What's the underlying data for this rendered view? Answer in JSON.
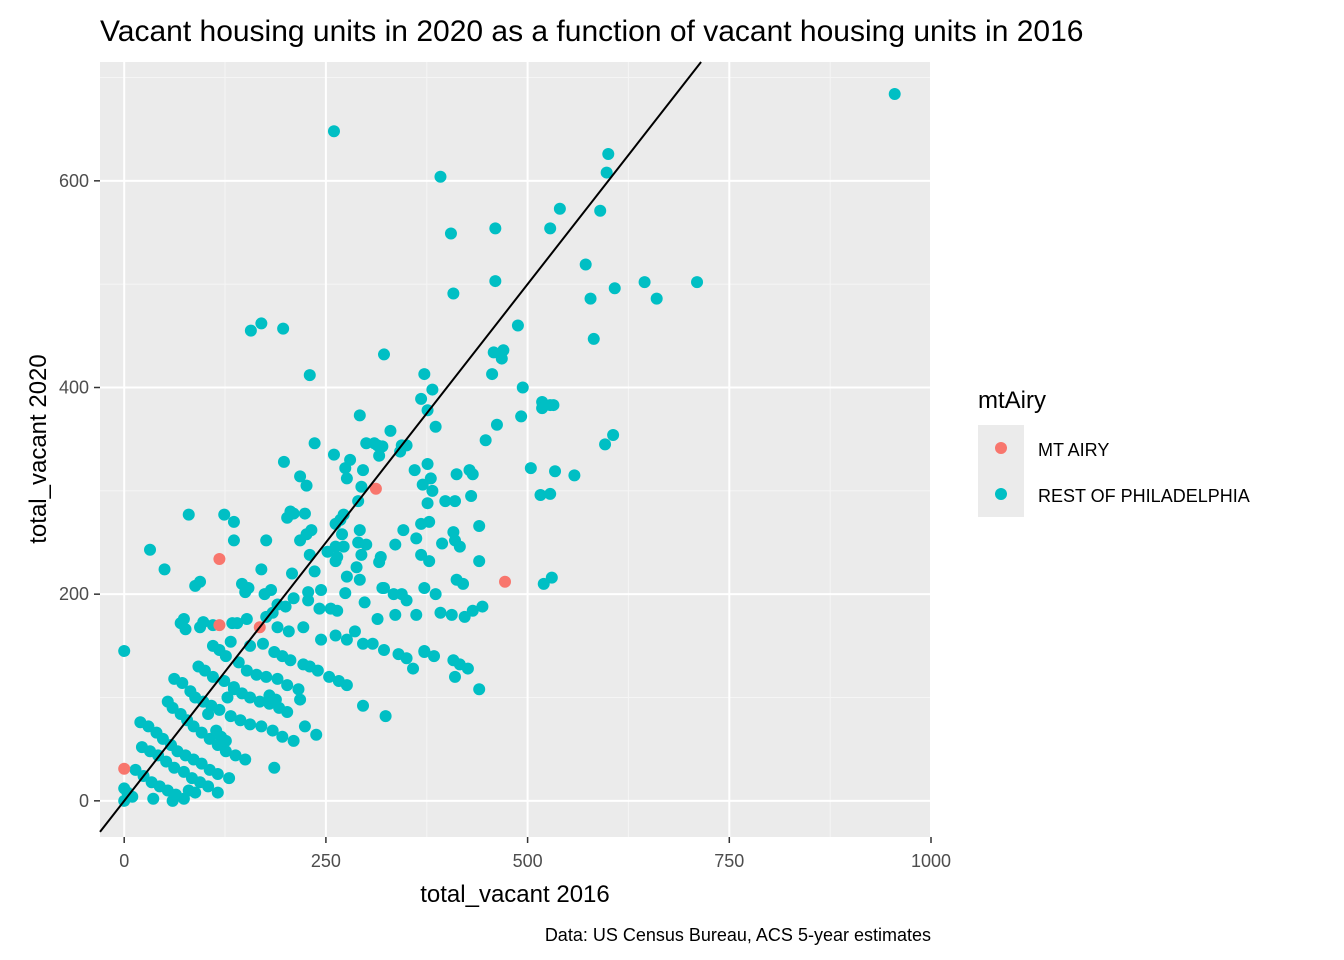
{
  "chart_data": {
    "type": "scatter",
    "title": "Vacant housing units in 2020 as a function of vacant housing units in 2016",
    "xlabel": "total_vacant 2016",
    "ylabel": "total_vacant 2020",
    "caption": "Data: US Census Bureau, ACS 5-year estimates",
    "xlim": [
      -30,
      1000
    ],
    "ylim": [
      -35,
      715
    ],
    "x_ticks": [
      0,
      250,
      500,
      750,
      1000
    ],
    "y_ticks": [
      0,
      200,
      400,
      600
    ],
    "grid": true,
    "legend": {
      "title": "mtAiry",
      "placement": "right"
    },
    "reference_line": {
      "slope": 1,
      "intercept": 0,
      "color": "#000000"
    },
    "series": [
      {
        "name": "MT AIRY",
        "color": "#F8766D",
        "points": [
          [
            0,
            31
          ],
          [
            118,
            234
          ],
          [
            118,
            170
          ],
          [
            168,
            168
          ],
          [
            312,
            302
          ],
          [
            472,
            212
          ]
        ]
      },
      {
        "name": "REST OF PHILADELPHIA",
        "color": "#00BFC4",
        "points": [
          [
            955,
            684
          ],
          [
            260,
            648
          ],
          [
            392,
            604
          ],
          [
            600,
            626
          ],
          [
            598,
            608
          ],
          [
            540,
            573
          ],
          [
            590,
            571
          ],
          [
            528,
            554
          ],
          [
            460,
            554
          ],
          [
            405,
            549
          ],
          [
            572,
            519
          ],
          [
            460,
            503
          ],
          [
            645,
            502
          ],
          [
            710,
            502
          ],
          [
            608,
            496
          ],
          [
            408,
            491
          ],
          [
            578,
            486
          ],
          [
            660,
            486
          ],
          [
            488,
            460
          ],
          [
            170,
            462
          ],
          [
            157,
            455
          ],
          [
            197,
            457
          ],
          [
            582,
            447
          ],
          [
            322,
            432
          ],
          [
            470,
            436
          ],
          [
            458,
            434
          ],
          [
            468,
            428
          ],
          [
            230,
            412
          ],
          [
            372,
            413
          ],
          [
            456,
            413
          ],
          [
            494,
            400
          ],
          [
            382,
            398
          ],
          [
            368,
            389
          ],
          [
            518,
            386
          ],
          [
            528,
            383
          ],
          [
            532,
            383
          ],
          [
            376,
            378
          ],
          [
            518,
            380
          ],
          [
            492,
            372
          ],
          [
            292,
            373
          ],
          [
            462,
            364
          ],
          [
            386,
            362
          ],
          [
            330,
            358
          ],
          [
            300,
            346
          ],
          [
            236,
            346
          ],
          [
            310,
            346
          ],
          [
            344,
            344
          ],
          [
            350,
            344
          ],
          [
            314,
            344
          ],
          [
            606,
            354
          ],
          [
            448,
            349
          ],
          [
            596,
            345
          ],
          [
            342,
            338
          ],
          [
            320,
            343
          ],
          [
            316,
            334
          ],
          [
            260,
            335
          ],
          [
            280,
            330
          ],
          [
            198,
            328
          ],
          [
            376,
            326
          ],
          [
            274,
            322
          ],
          [
            504,
            322
          ],
          [
            218,
            314
          ],
          [
            296,
            320
          ],
          [
            360,
            320
          ],
          [
            428,
            320
          ],
          [
            412,
            316
          ],
          [
            432,
            316
          ],
          [
            558,
            315
          ],
          [
            534,
            319
          ],
          [
            226,
            305
          ],
          [
            370,
            306
          ],
          [
            380,
            312
          ],
          [
            276,
            312
          ],
          [
            382,
            300
          ],
          [
            290,
            290
          ],
          [
            398,
            290
          ],
          [
            376,
            288
          ],
          [
            410,
            290
          ],
          [
            294,
            304
          ],
          [
            528,
            297
          ],
          [
            516,
            296
          ],
          [
            430,
            295
          ],
          [
            206,
            280
          ],
          [
            202,
            274
          ],
          [
            210,
            278
          ],
          [
            224,
            278
          ],
          [
            124,
            277
          ],
          [
            80,
            277
          ],
          [
            272,
            277
          ],
          [
            262,
            268
          ],
          [
            368,
            268
          ],
          [
            378,
            270
          ],
          [
            268,
            272
          ],
          [
            136,
            270
          ],
          [
            346,
            262
          ],
          [
            232,
            262
          ],
          [
            408,
            260
          ],
          [
            410,
            252
          ],
          [
            440,
            266
          ],
          [
            270,
            258
          ],
          [
            292,
            262
          ],
          [
            176,
            252
          ],
          [
            226,
            258
          ],
          [
            218,
            252
          ],
          [
            272,
            246
          ],
          [
            394,
            249
          ],
          [
            336,
            248
          ],
          [
            290,
            250
          ],
          [
            300,
            248
          ],
          [
            262,
            246
          ],
          [
            362,
            254
          ],
          [
            136,
            252
          ],
          [
            416,
            246
          ],
          [
            230,
            238
          ],
          [
            252,
            241
          ],
          [
            294,
            238
          ],
          [
            264,
            236
          ],
          [
            318,
            236
          ],
          [
            368,
            238
          ],
          [
            262,
            232
          ],
          [
            378,
            232
          ],
          [
            50,
            224
          ],
          [
            170,
            224
          ],
          [
            208,
            220
          ],
          [
            236,
            222
          ],
          [
            276,
            217
          ],
          [
            316,
            231
          ],
          [
            288,
            226
          ],
          [
            440,
            232
          ],
          [
            32,
            243
          ],
          [
            88,
            208
          ],
          [
            94,
            212
          ],
          [
            146,
            210
          ],
          [
            154,
            206
          ],
          [
            182,
            204
          ],
          [
            228,
            202
          ],
          [
            292,
            214
          ],
          [
            320,
            206
          ],
          [
            322,
            206
          ],
          [
            420,
            210
          ],
          [
            412,
            214
          ],
          [
            520,
            210
          ],
          [
            530,
            216
          ],
          [
            372,
            206
          ],
          [
            334,
            200
          ],
          [
            344,
            200
          ],
          [
            350,
            194
          ],
          [
            386,
            200
          ],
          [
            244,
            204
          ],
          [
            274,
            201
          ],
          [
            150,
            202
          ],
          [
            174,
            200
          ],
          [
            210,
            196
          ],
          [
            228,
            194
          ],
          [
            70,
            172
          ],
          [
            74,
            176
          ],
          [
            76,
            166
          ],
          [
            94,
            168
          ],
          [
            98,
            173
          ],
          [
            110,
            170
          ],
          [
            134,
            172
          ],
          [
            140,
            172
          ],
          [
            152,
            176
          ],
          [
            176,
            178
          ],
          [
            184,
            182
          ],
          [
            190,
            190
          ],
          [
            200,
            188
          ],
          [
            242,
            186
          ],
          [
            256,
            186
          ],
          [
            264,
            184
          ],
          [
            298,
            192
          ],
          [
            314,
            176
          ],
          [
            336,
            180
          ],
          [
            362,
            180
          ],
          [
            392,
            182
          ],
          [
            406,
            180
          ],
          [
            422,
            178
          ],
          [
            432,
            184
          ],
          [
            444,
            188
          ],
          [
            190,
            168
          ],
          [
            204,
            164
          ],
          [
            222,
            168
          ],
          [
            244,
            156
          ],
          [
            262,
            160
          ],
          [
            276,
            156
          ],
          [
            286,
            164
          ],
          [
            296,
            152
          ],
          [
            308,
            152
          ],
          [
            322,
            146
          ],
          [
            340,
            142
          ],
          [
            350,
            138
          ],
          [
            358,
            128
          ],
          [
            372,
            144
          ],
          [
            384,
            140
          ],
          [
            408,
            136
          ],
          [
            416,
            132
          ],
          [
            426,
            128
          ],
          [
            132,
            154
          ],
          [
            156,
            150
          ],
          [
            172,
            152
          ],
          [
            186,
            144
          ],
          [
            196,
            140
          ],
          [
            206,
            136
          ],
          [
            222,
            132
          ],
          [
            230,
            130
          ],
          [
            240,
            126
          ],
          [
            254,
            120
          ],
          [
            266,
            116
          ],
          [
            276,
            112
          ],
          [
            110,
            150
          ],
          [
            118,
            146
          ],
          [
            126,
            140
          ],
          [
            142,
            134
          ],
          [
            152,
            126
          ],
          [
            164,
            122
          ],
          [
            176,
            120
          ],
          [
            190,
            118
          ],
          [
            202,
            112
          ],
          [
            216,
            108
          ],
          [
            92,
            130
          ],
          [
            100,
            126
          ],
          [
            110,
            120
          ],
          [
            124,
            116
          ],
          [
            136,
            108
          ],
          [
            146,
            104
          ],
          [
            156,
            100
          ],
          [
            168,
            96
          ],
          [
            180,
            94
          ],
          [
            192,
            90
          ],
          [
            202,
            86
          ],
          [
            62,
            118
          ],
          [
            72,
            114
          ],
          [
            82,
            106
          ],
          [
            88,
            100
          ],
          [
            98,
            96
          ],
          [
            108,
            92
          ],
          [
            118,
            88
          ],
          [
            132,
            82
          ],
          [
            144,
            78
          ],
          [
            156,
            74
          ],
          [
            170,
            72
          ],
          [
            184,
            68
          ],
          [
            196,
            62
          ],
          [
            210,
            58
          ],
          [
            54,
            96
          ],
          [
            60,
            90
          ],
          [
            70,
            84
          ],
          [
            78,
            78
          ],
          [
            86,
            72
          ],
          [
            96,
            66
          ],
          [
            106,
            60
          ],
          [
            116,
            54
          ],
          [
            126,
            48
          ],
          [
            138,
            44
          ],
          [
            150,
            40
          ],
          [
            20,
            76
          ],
          [
            30,
            72
          ],
          [
            40,
            66
          ],
          [
            48,
            60
          ],
          [
            58,
            54
          ],
          [
            66,
            48
          ],
          [
            76,
            44
          ],
          [
            86,
            40
          ],
          [
            96,
            36
          ],
          [
            106,
            30
          ],
          [
            116,
            26
          ],
          [
            130,
            22
          ],
          [
            22,
            52
          ],
          [
            32,
            48
          ],
          [
            42,
            44
          ],
          [
            52,
            38
          ],
          [
            62,
            32
          ],
          [
            74,
            28
          ],
          [
            84,
            22
          ],
          [
            94,
            18
          ],
          [
            104,
            14
          ],
          [
            14,
            30
          ],
          [
            24,
            24
          ],
          [
            34,
            18
          ],
          [
            44,
            14
          ],
          [
            54,
            10
          ],
          [
            64,
            6
          ],
          [
            74,
            2
          ],
          [
            0,
            145
          ],
          [
            0,
            12
          ],
          [
            4,
            8
          ],
          [
            10,
            4
          ],
          [
            0,
            0
          ],
          [
            372,
            145
          ],
          [
            410,
            120
          ],
          [
            440,
            108
          ],
          [
            186,
            32
          ],
          [
            296,
            92
          ],
          [
            324,
            82
          ],
          [
            218,
            98
          ],
          [
            224,
            72
          ],
          [
            238,
            64
          ],
          [
            188,
            98
          ],
          [
            180,
            102
          ],
          [
            116,
            8
          ],
          [
            36,
            2
          ],
          [
            60,
            0
          ],
          [
            80,
            10
          ],
          [
            88,
            8
          ],
          [
            128,
            100
          ],
          [
            136,
            110
          ],
          [
            104,
            84
          ],
          [
            114,
            68
          ],
          [
            120,
            62
          ],
          [
            126,
            58
          ]
        ]
      }
    ]
  }
}
